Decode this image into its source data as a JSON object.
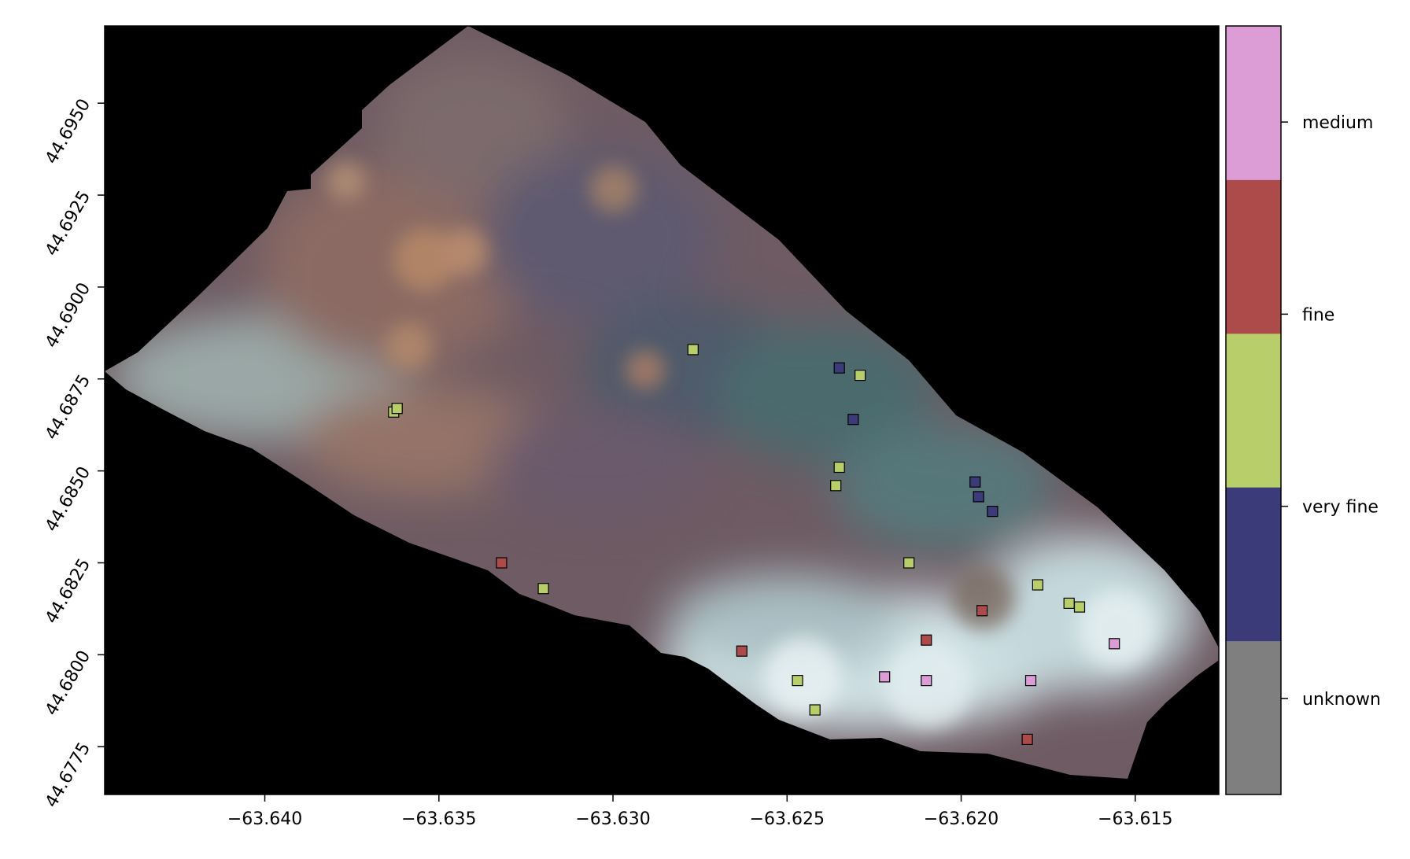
{
  "chart_data": {
    "type": "scatter",
    "title": "",
    "xlabel": "",
    "ylabel": "",
    "xlim": [
      -63.6446,
      -63.6126
    ],
    "ylim": [
      44.6762,
      44.6971
    ],
    "x_ticks": [
      -63.64,
      -63.635,
      -63.63,
      -63.625,
      -63.62,
      -63.615
    ],
    "x_tick_labels": [
      "−63.640",
      "−63.635",
      "−63.630",
      "−63.625",
      "−63.620",
      "−63.615"
    ],
    "y_ticks": [
      44.6775,
      44.68,
      44.6825,
      44.685,
      44.6875,
      44.69,
      44.6925,
      44.695
    ],
    "y_tick_labels": [
      "44.6775",
      "44.6800",
      "44.6825",
      "44.6850",
      "44.6875",
      "44.6900",
      "44.6925",
      "44.6950"
    ],
    "background": "aerial multispectral mosaic (false-colour) on black",
    "grid": false,
    "categories": [
      {
        "name": "unknown",
        "color": "#7f7f7f"
      },
      {
        "name": "very fine",
        "color": "#3c3b7a"
      },
      {
        "name": "",
        "color": "#b7ce6a"
      },
      {
        "name": "fine",
        "color": "#ad4a4a"
      },
      {
        "name": "medium",
        "color": "#dc9dd6"
      }
    ],
    "colorbar_labels": [
      "unknown",
      "very fine",
      "fine",
      "medium"
    ],
    "points": [
      {
        "x": -63.6363,
        "y": 44.6866,
        "class": 2
      },
      {
        "x": -63.6362,
        "y": 44.6867,
        "class": 2
      },
      {
        "x": -63.6277,
        "y": 44.6883,
        "class": 2
      },
      {
        "x": -63.6235,
        "y": 44.6878,
        "class": 1
      },
      {
        "x": -63.6229,
        "y": 44.6876,
        "class": 2
      },
      {
        "x": -63.6231,
        "y": 44.6864,
        "class": 1
      },
      {
        "x": -63.6235,
        "y": 44.6851,
        "class": 2
      },
      {
        "x": -63.6236,
        "y": 44.6846,
        "class": 2
      },
      {
        "x": -63.6196,
        "y": 44.6847,
        "class": 1
      },
      {
        "x": -63.6195,
        "y": 44.6843,
        "class": 1
      },
      {
        "x": -63.6191,
        "y": 44.6839,
        "class": 1
      },
      {
        "x": -63.6332,
        "y": 44.6825,
        "class": 3
      },
      {
        "x": -63.632,
        "y": 44.6818,
        "class": 2
      },
      {
        "x": -63.6215,
        "y": 44.6825,
        "class": 2
      },
      {
        "x": -63.6178,
        "y": 44.6819,
        "class": 2
      },
      {
        "x": -63.6169,
        "y": 44.6814,
        "class": 2
      },
      {
        "x": -63.6166,
        "y": 44.6813,
        "class": 2
      },
      {
        "x": -63.6194,
        "y": 44.6812,
        "class": 3
      },
      {
        "x": -63.621,
        "y": 44.6804,
        "class": 3
      },
      {
        "x": -63.6156,
        "y": 44.6803,
        "class": 4
      },
      {
        "x": -63.6263,
        "y": 44.6801,
        "class": 3
      },
      {
        "x": -63.6247,
        "y": 44.6793,
        "class": 2
      },
      {
        "x": -63.6222,
        "y": 44.6794,
        "class": 4
      },
      {
        "x": -63.621,
        "y": 44.6793,
        "class": 4
      },
      {
        "x": -63.618,
        "y": 44.6793,
        "class": 4
      },
      {
        "x": -63.6242,
        "y": 44.6785,
        "class": 2
      },
      {
        "x": -63.6181,
        "y": 44.6777,
        "class": 3
      }
    ]
  }
}
